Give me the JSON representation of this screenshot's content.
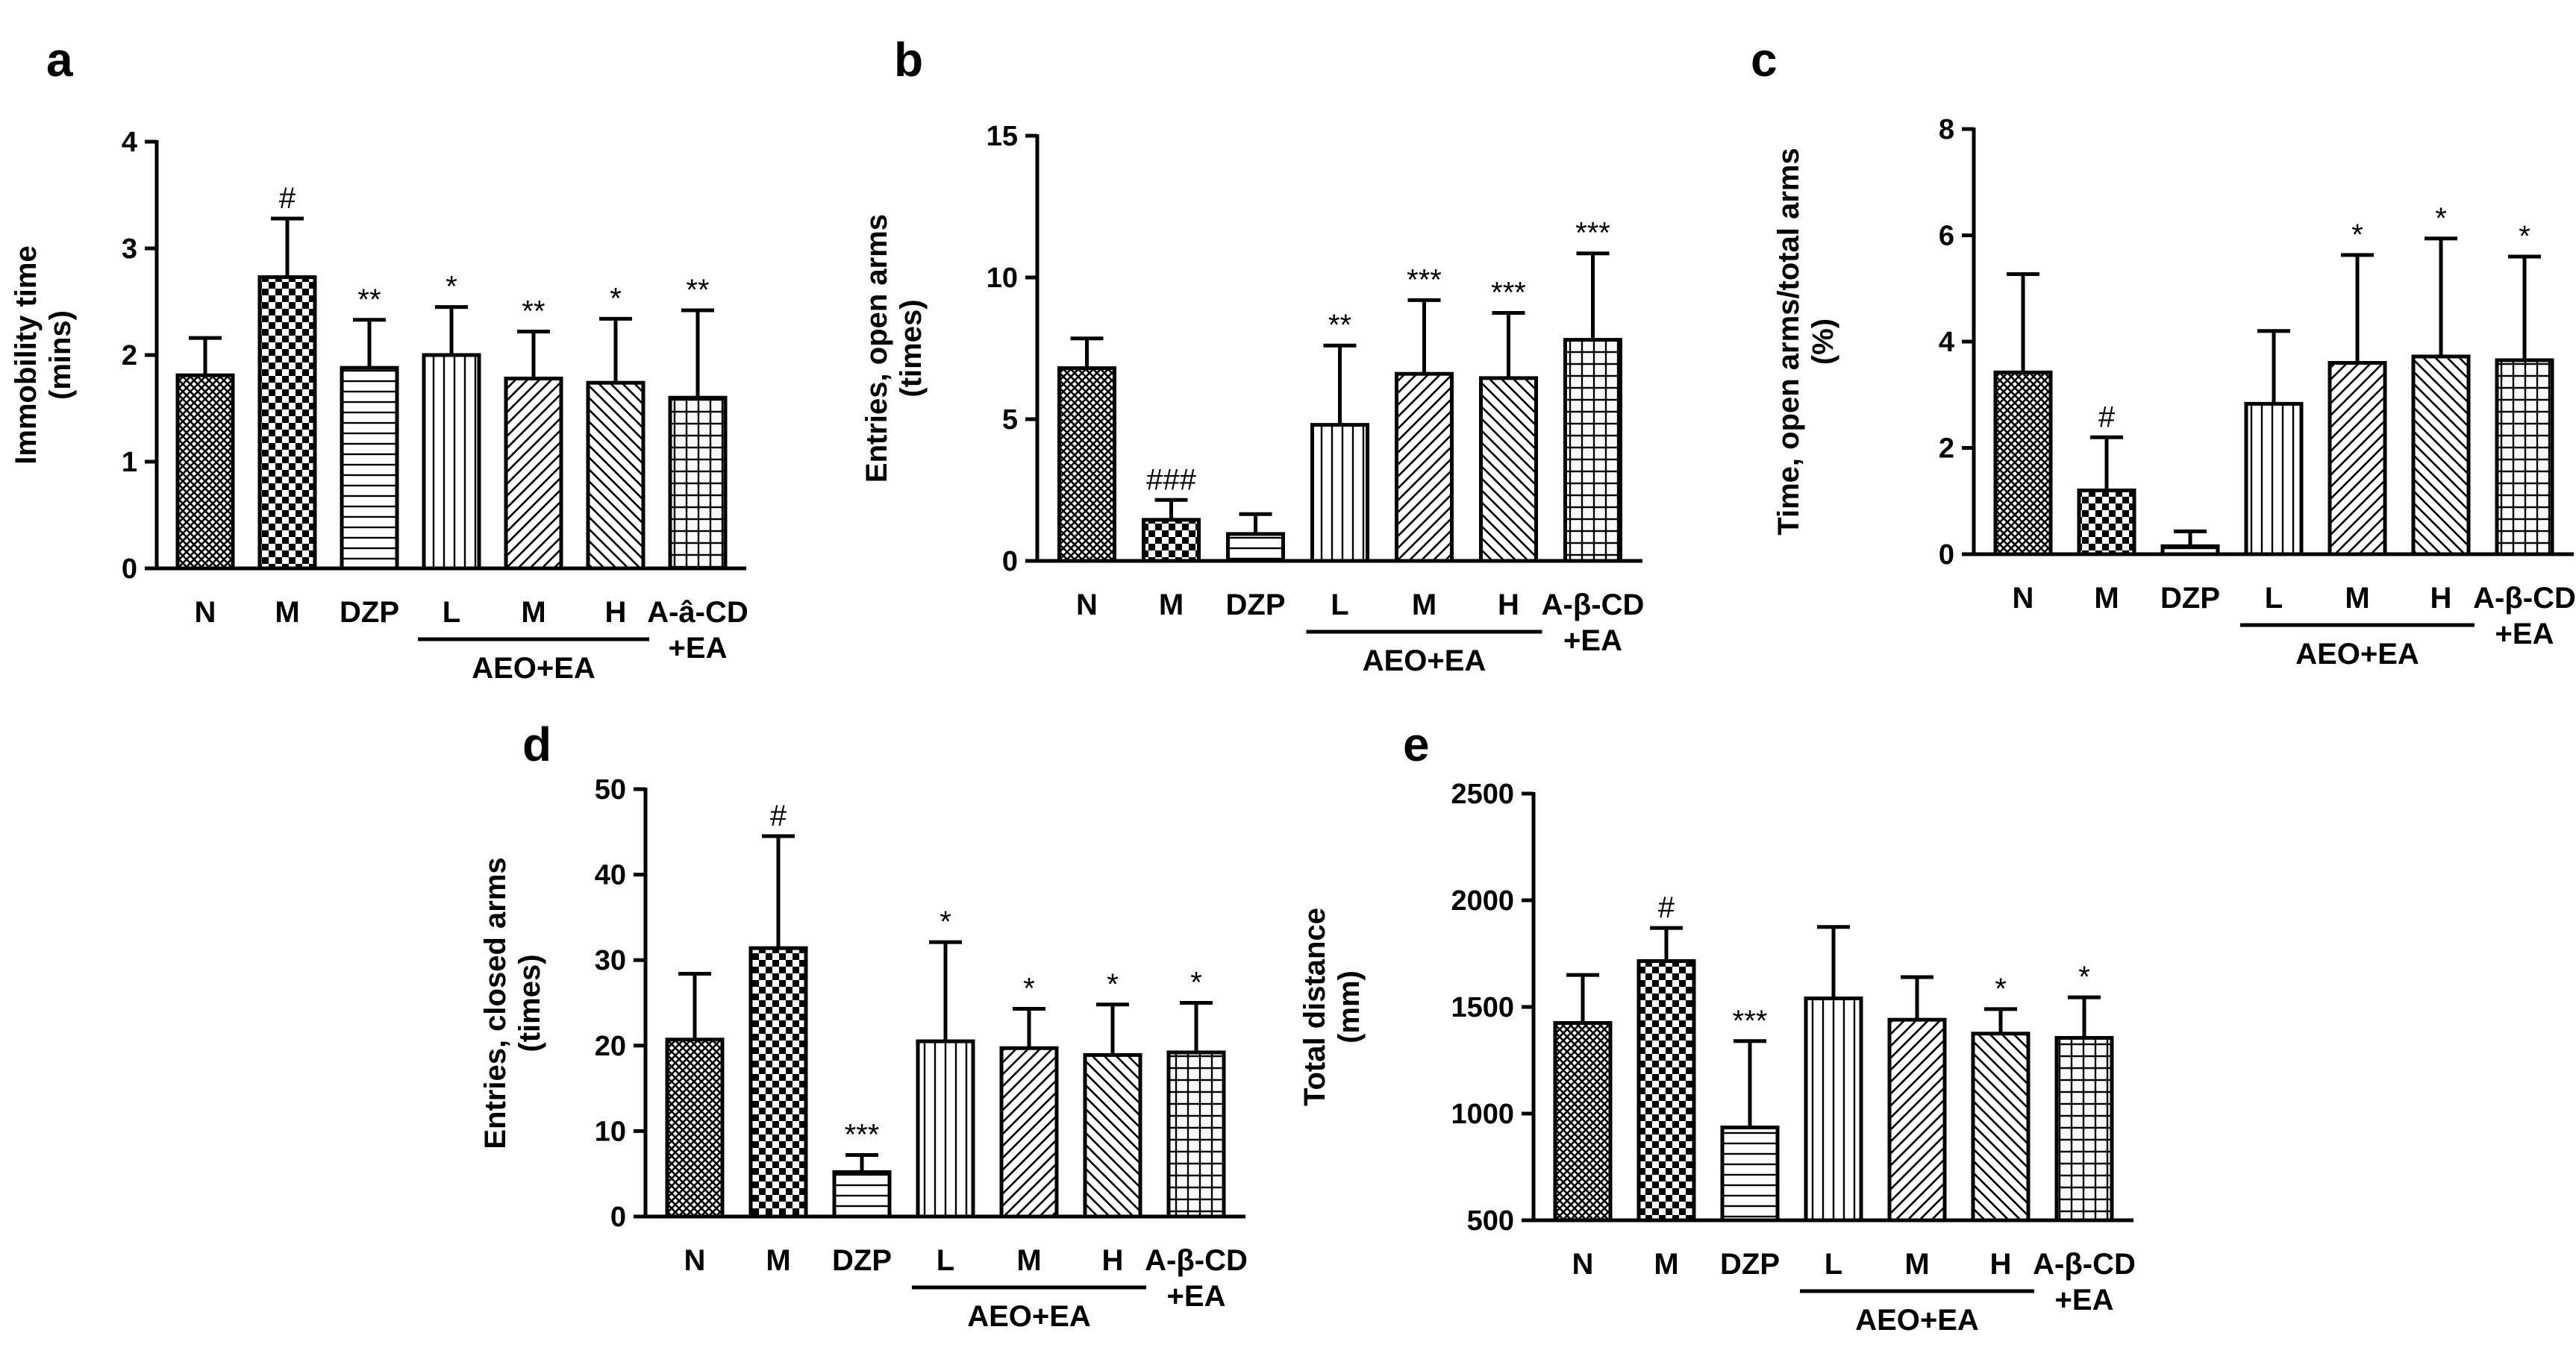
{
  "figure": {
    "colors": {
      "ink": "#000000",
      "bar_fill": "#ffffff"
    },
    "patterns": [
      "dense-crosshatch",
      "checker",
      "horizontal-lines",
      "vertical-lines",
      "diagonal-lines",
      "diagonal-lines",
      "grid"
    ]
  },
  "chart_data": [
    {
      "panel": "a",
      "type": "bar",
      "ylabel": [
        "Immobility time",
        "(mins)"
      ],
      "ylim": [
        0,
        4
      ],
      "yticks": [
        0,
        1,
        2,
        3,
        4
      ],
      "categories": [
        [
          "N"
        ],
        [
          "M"
        ],
        [
          "DZP"
        ],
        [
          "L"
        ],
        [
          "M"
        ],
        [
          "H"
        ],
        [
          "A-â-CD",
          "+EA"
        ]
      ],
      "group_label": "AEO+EA",
      "group_span": [
        3,
        5
      ],
      "values": [
        1.81,
        2.73,
        1.88,
        2.0,
        1.78,
        1.74,
        1.6
      ],
      "errors": [
        0.35,
        0.55,
        0.45,
        0.45,
        0.44,
        0.6,
        0.82
      ],
      "annotations": [
        "",
        "#",
        "**",
        "*",
        "**",
        "*",
        "**"
      ]
    },
    {
      "panel": "b",
      "type": "bar",
      "ylabel": [
        "Entries, open arms",
        "(times)"
      ],
      "ylim": [
        0,
        15
      ],
      "yticks": [
        0,
        5,
        10,
        15
      ],
      "categories": [
        [
          "N"
        ],
        [
          "M"
        ],
        [
          "DZP"
        ],
        [
          "L"
        ],
        [
          "M"
        ],
        [
          "H"
        ],
        [
          "A-β-CD",
          "+EA"
        ]
      ],
      "group_label": "AEO+EA",
      "group_span": [
        3,
        5
      ],
      "values": [
        6.8,
        1.45,
        0.95,
        4.8,
        6.6,
        6.45,
        7.8
      ],
      "errors": [
        1.05,
        0.7,
        0.7,
        2.8,
        2.6,
        2.3,
        3.05
      ],
      "annotations": [
        "",
        "###",
        "",
        "**",
        "***",
        "***",
        "***"
      ]
    },
    {
      "panel": "c",
      "type": "bar",
      "ylabel": [
        "Time, open arms/total arms",
        "(%)"
      ],
      "ylim": [
        0,
        8
      ],
      "yticks": [
        0,
        2,
        4,
        6,
        8
      ],
      "categories": [
        [
          "N"
        ],
        [
          "M"
        ],
        [
          "DZP"
        ],
        [
          "L"
        ],
        [
          "M"
        ],
        [
          "H"
        ],
        [
          "A-β-CD",
          "+EA"
        ]
      ],
      "group_label": "AEO+EA",
      "group_span": [
        3,
        5
      ],
      "values": [
        3.42,
        1.2,
        0.15,
        2.83,
        3.6,
        3.72,
        3.65
      ],
      "errors": [
        1.85,
        1.0,
        0.28,
        1.37,
        2.03,
        2.22,
        1.95
      ],
      "annotations": [
        "",
        "#",
        "",
        "",
        "*",
        "*",
        "*"
      ]
    },
    {
      "panel": "d",
      "type": "bar",
      "ylabel": [
        "Entries, closed arms",
        "(times)"
      ],
      "ylim": [
        0,
        50
      ],
      "yticks": [
        0,
        10,
        20,
        30,
        40,
        50
      ],
      "categories": [
        [
          "N"
        ],
        [
          "M"
        ],
        [
          "DZP"
        ],
        [
          "L"
        ],
        [
          "M"
        ],
        [
          "H"
        ],
        [
          "A-β-CD",
          "+EA"
        ]
      ],
      "group_label": "AEO+EA",
      "group_span": [
        3,
        5
      ],
      "values": [
        20.7,
        31.4,
        5.2,
        20.5,
        19.7,
        18.9,
        19.2
      ],
      "errors": [
        7.7,
        13.1,
        2.0,
        11.6,
        4.6,
        5.9,
        5.8
      ],
      "annotations": [
        "",
        "#",
        "***",
        "*",
        "*",
        "*",
        "*"
      ]
    },
    {
      "panel": "e",
      "type": "bar",
      "ylabel": [
        "Total distance",
        "(mm)"
      ],
      "ylim": [
        500,
        2500
      ],
      "yticks": [
        500,
        1000,
        1500,
        2000,
        2500
      ],
      "categories": [
        [
          "N"
        ],
        [
          "M"
        ],
        [
          "DZP"
        ],
        [
          "L"
        ],
        [
          "M"
        ],
        [
          "H"
        ],
        [
          "A-β-CD",
          "+EA"
        ]
      ],
      "group_label": "AEO+EA",
      "group_span": [
        3,
        5
      ],
      "values": [
        1425,
        1715,
        935,
        1540,
        1440,
        1375,
        1355
      ],
      "errors": [
        225,
        155,
        405,
        335,
        200,
        115,
        190
      ],
      "annotations": [
        "",
        "#",
        "***",
        "",
        "",
        "*",
        "*"
      ]
    }
  ]
}
